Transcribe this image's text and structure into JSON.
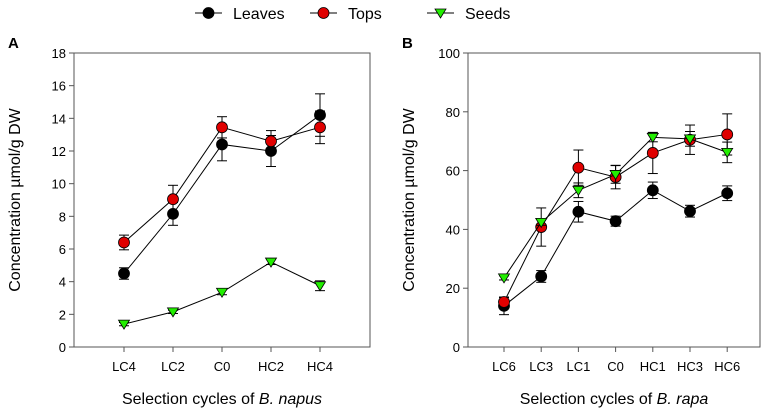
{
  "legend": [
    {
      "label": "Leaves",
      "color": "#000000",
      "marker": "circle"
    },
    {
      "label": "Tops",
      "color": "#e00000",
      "marker": "circle"
    },
    {
      "label": "Seeds",
      "color": "#22ee00",
      "marker": "triangle-down"
    }
  ],
  "chart_data": [
    {
      "type": "line",
      "panel_label": "A",
      "xlabel_prefix": "Selection cycles of ",
      "xlabel_italic": "B. napus",
      "ylabel": "Concentration µmol/g DW",
      "categories": [
        "LC4",
        "LC2",
        "C0",
        "HC2",
        "HC4"
      ],
      "ylim": [
        0,
        18
      ],
      "yticks": [
        0,
        2,
        4,
        6,
        8,
        10,
        12,
        14,
        16,
        18
      ],
      "series": [
        {
          "name": "Leaves",
          "values": [
            4.5,
            8.15,
            12.4,
            12.0,
            14.2
          ],
          "errors": [
            0.35,
            0.7,
            1.0,
            0.95,
            1.3
          ]
        },
        {
          "name": "Tops",
          "values": [
            6.4,
            9.05,
            13.45,
            12.6,
            13.45
          ],
          "errors": [
            0.45,
            0.85,
            0.65,
            0.65,
            1.0
          ]
        },
        {
          "name": "Seeds",
          "values": [
            1.4,
            2.15,
            3.35,
            5.2,
            3.75
          ],
          "errors": [
            0.1,
            0.1,
            0.15,
            0.15,
            0.3
          ]
        }
      ]
    },
    {
      "type": "line",
      "panel_label": "B",
      "xlabel_prefix": "Selection cycles of ",
      "xlabel_italic": "B. rapa",
      "ylabel": "Concentration µmol/g DW",
      "categories": [
        "LC6",
        "LC3",
        "LC1",
        "C0",
        "HC1",
        "HC3",
        "HC6"
      ],
      "ylim": [
        0,
        100
      ],
      "yticks": [
        0,
        20,
        40,
        60,
        80,
        100
      ],
      "series": [
        {
          "name": "Leaves",
          "values": [
            14,
            24,
            46,
            42.8,
            53.3,
            46.2,
            52.3
          ],
          "errors": [
            3,
            2,
            3.5,
            1.7,
            2.8,
            2,
            2.5
          ]
        },
        {
          "name": "Tops",
          "values": [
            15.3,
            40.8,
            61,
            57.8,
            66,
            70.5,
            72.3
          ],
          "errors": [
            1.5,
            6.5,
            6,
            4,
            7,
            5,
            7
          ]
        },
        {
          "name": "Seeds",
          "values": [
            23.5,
            42.4,
            53.3,
            58.7,
            71.3,
            70.8,
            66.2
          ],
          "errors": [
            0.7,
            1,
            2.5,
            3,
            1.5,
            2.5,
            3.5
          ]
        }
      ]
    }
  ]
}
